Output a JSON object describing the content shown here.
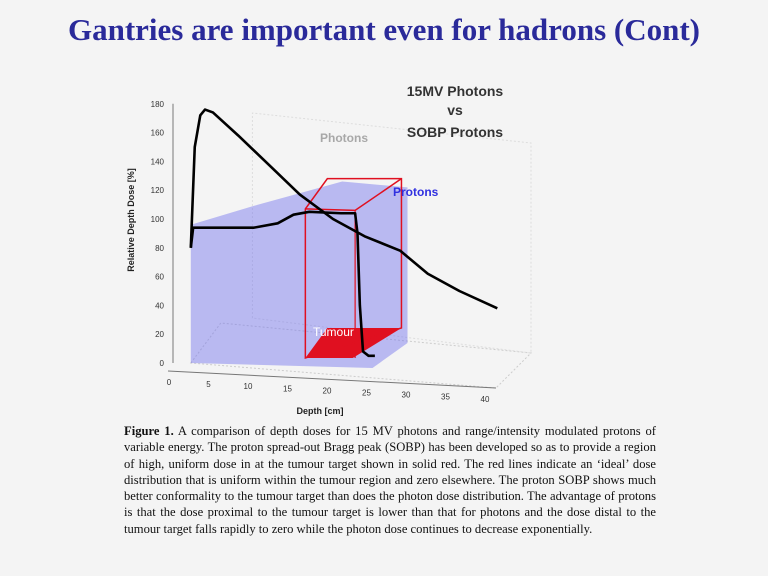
{
  "slide": {
    "title": "Gantries are important even for hadrons (Cont)"
  },
  "figure": {
    "caption_label": "Figure 1.",
    "caption_text": " A comparison of depth doses for 15 MV photons and range/intensity modulated protons of variable energy.  The proton spread-out Bragg peak (SOBP) has been developed so as to provide a region of high, uniform dose in at the tumour target shown in solid red.  The red lines indicate an ‘ideal’ dose distribution that is uniform within the tumour region and zero elsewhere.  The proton SOBP shows much better conformality to the tumour target than does the photon dose distribution.  The advantage of protons is that the dose proximal to the tumour target is lower than that for photons and the dose distal to the tumour target falls rapidly to zero while the photon dose continues to decrease exponentially."
  },
  "chart_data": {
    "type": "line",
    "title_lines": [
      "15MV Photons",
      "vs",
      "SOBP Protons"
    ],
    "xlabel": "Depth [cm]",
    "ylabel": "Relative Depth Dose [%]",
    "xlim": [
      0,
      40
    ],
    "ylim": [
      0,
      180
    ],
    "xticks": [
      0,
      5,
      10,
      15,
      20,
      25,
      30,
      35,
      40
    ],
    "yticks": [
      0,
      20,
      40,
      60,
      80,
      100,
      120,
      140,
      160,
      180
    ],
    "grid": true,
    "annotations": [
      "Photons",
      "Protons",
      "Tumour"
    ],
    "colors": {
      "photons_label": "#a8a8a8",
      "protons": "#3030e0",
      "tumour": "#e01020",
      "curve": "#000000",
      "title": "#333333"
    },
    "tumour_region": {
      "depth": [
        15,
        25
      ],
      "dose": 100
    },
    "series": [
      {
        "name": "Photons",
        "x": [
          2,
          2.5,
          3.2,
          3.8,
          4.8,
          8,
          12,
          15.8,
          20,
          24,
          28.5,
          32,
          36,
          40.8
        ],
        "y": [
          80,
          150,
          172,
          176,
          174,
          158,
          137,
          117,
          100,
          88,
          78,
          62,
          50,
          38
        ]
      },
      {
        "name": "Protons",
        "x": [
          2,
          2.3,
          6,
          10,
          13,
          15,
          17,
          21,
          22.8,
          23.1,
          23.4,
          23.8,
          24.5,
          25.3
        ],
        "y": [
          80,
          94,
          94,
          94,
          97,
          103,
          105,
          104,
          104,
          90,
          40,
          8,
          5,
          5
        ]
      }
    ]
  }
}
